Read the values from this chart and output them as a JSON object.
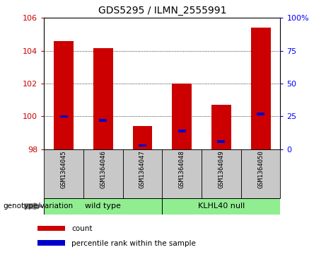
{
  "title": "GDS5295 / ILMN_2555991",
  "samples": [
    "GSM1364045",
    "GSM1364046",
    "GSM1364047",
    "GSM1364048",
    "GSM1364049",
    "GSM1364050"
  ],
  "red_values": [
    104.6,
    104.15,
    99.4,
    102.0,
    100.7,
    105.4
  ],
  "blue_values": [
    100.0,
    99.75,
    98.22,
    99.1,
    98.45,
    100.15
  ],
  "ymin": 98,
  "ymax": 106,
  "yticks_left": [
    98,
    100,
    102,
    104,
    106
  ],
  "yticks_right": [
    0,
    25,
    50,
    75,
    100
  ],
  "yright_labels": [
    "0",
    "25",
    "50",
    "75",
    "100%"
  ],
  "bar_width": 0.5,
  "red_color": "#cc0000",
  "blue_color": "#0000cc",
  "group1_label": "wild type",
  "group2_label": "KLHL40 null",
  "group1_indices": [
    0,
    1,
    2
  ],
  "group2_indices": [
    3,
    4,
    5
  ],
  "group_bg_color": "#90ee90",
  "sample_bg_color": "#c8c8c8",
  "legend_count_label": "count",
  "legend_pct_label": "percentile rank within the sample",
  "xlabel_label": "genotype/variation"
}
